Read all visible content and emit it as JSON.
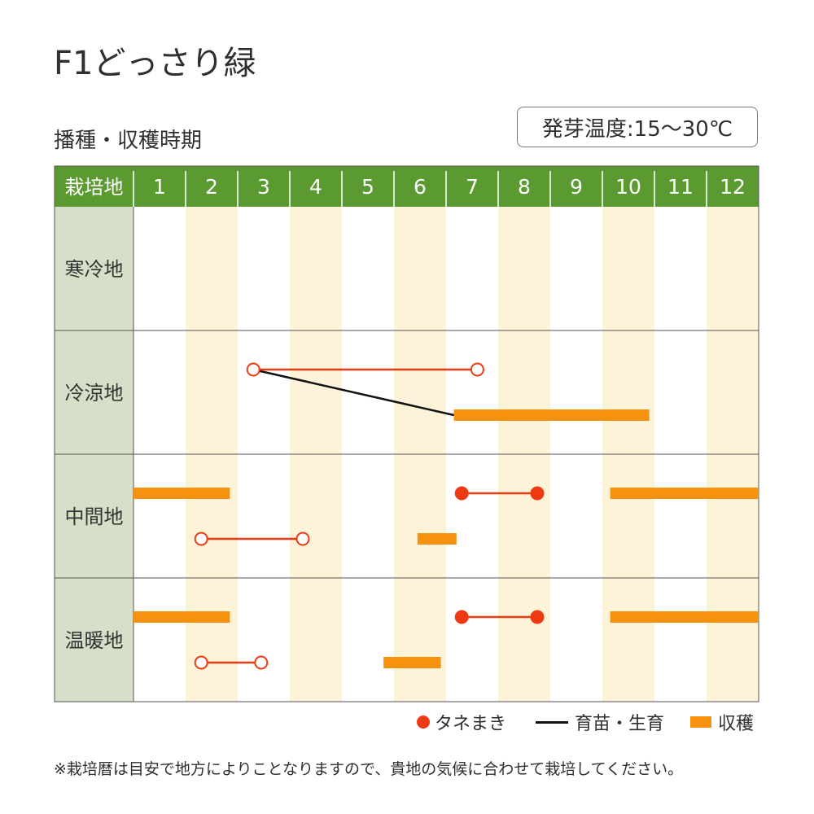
{
  "title": "F1どっさり緑",
  "subtitle": "播種・収穫時期",
  "temperature": "発芽温度:15〜30℃",
  "note": "※栽培暦は目安で地方によりことなりますので、貴地の気候に合わせて栽培してください。",
  "colors": {
    "header_bg": "#5a9a31",
    "row_label_bg": "#d6dfc8",
    "stripe": "#fdf3d8",
    "grid": "#cccccc",
    "border": "#555555",
    "sowing": "#ee3a12",
    "growing": "#111111",
    "harvest": "#f7920f"
  },
  "legend": {
    "sowing": "タネまき",
    "growing": "育苗・生育",
    "harvest": "収穫"
  },
  "chart_data": {
    "type": "table",
    "header_label": "栽培地",
    "months": [
      "1",
      "2",
      "3",
      "4",
      "5",
      "6",
      "7",
      "8",
      "9",
      "10",
      "11",
      "12"
    ],
    "regions": [
      {
        "name": "寒冷地",
        "sowing": [],
        "growing": [],
        "harvest": []
      },
      {
        "name": "冷涼地",
        "sowing": [
          {
            "lane": 0,
            "start": 3.3,
            "end": 7.6,
            "marker": "open"
          }
        ],
        "growing": [
          {
            "from": {
              "month": 3.3,
              "lane": 0
            },
            "to": {
              "month": 7.15,
              "lane": 1
            }
          }
        ],
        "harvest": [
          {
            "lane": 1,
            "start": 7.15,
            "end": 10.9
          }
        ]
      },
      {
        "name": "中間地",
        "sowing": [
          {
            "lane": 0,
            "start": 7.3,
            "end": 8.75,
            "marker": "filled"
          },
          {
            "lane": 1,
            "start": 2.3,
            "end": 4.25,
            "marker": "open"
          }
        ],
        "growing": [],
        "harvest": [
          {
            "lane": 0,
            "start": 1.0,
            "end": 2.85
          },
          {
            "lane": 0,
            "start": 10.15,
            "end": 13.0
          },
          {
            "lane": 1,
            "start": 6.45,
            "end": 7.2
          }
        ]
      },
      {
        "name": "温暖地",
        "sowing": [
          {
            "lane": 0,
            "start": 7.3,
            "end": 8.75,
            "marker": "filled"
          },
          {
            "lane": 1,
            "start": 2.3,
            "end": 3.45,
            "marker": "open"
          }
        ],
        "growing": [],
        "harvest": [
          {
            "lane": 0,
            "start": 1.0,
            "end": 2.85
          },
          {
            "lane": 0,
            "start": 10.15,
            "end": 13.0
          },
          {
            "lane": 1,
            "start": 5.8,
            "end": 6.9
          }
        ]
      }
    ]
  }
}
